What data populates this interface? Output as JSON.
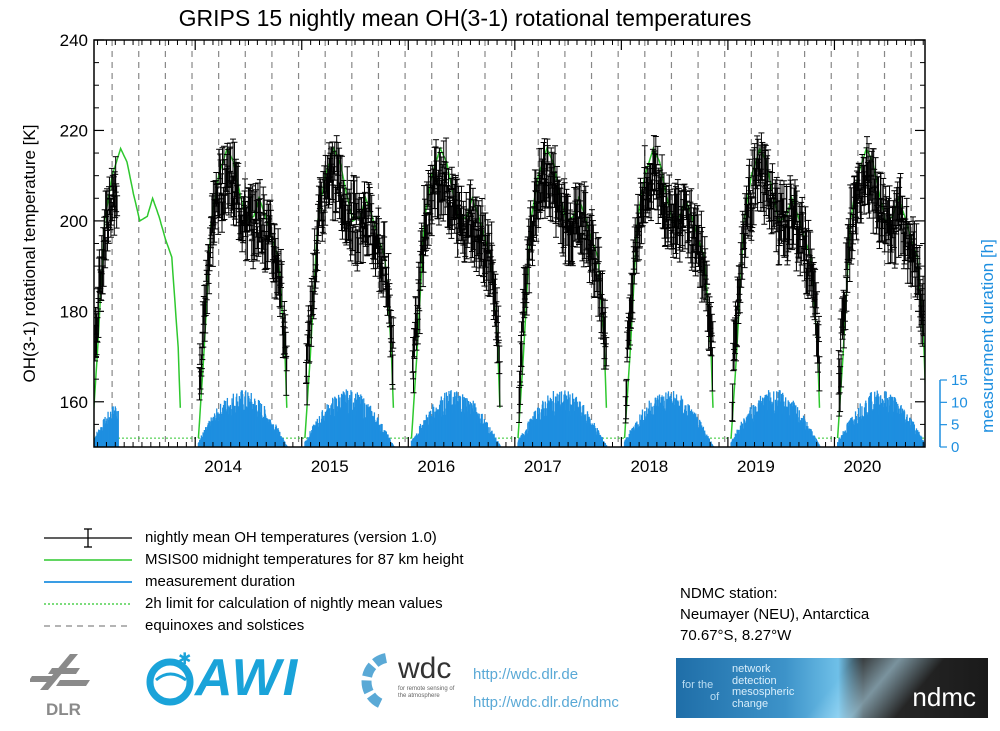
{
  "chart_data": {
    "type": "line",
    "title": "GRIPS 15 nightly mean OH(3-1) rotational temperatures",
    "ylabel": "OH(3-1) rotational temperature [K]",
    "y2label": "measurement duration [h]",
    "xlabel": "",
    "xlim": [
      2013.05,
      2020.85
    ],
    "ylim": [
      150,
      240
    ],
    "y2lim": [
      0,
      15
    ],
    "yticks": [
      "160",
      "180",
      "200",
      "220",
      "240"
    ],
    "y2ticks": [
      "0",
      "5",
      "10",
      "15"
    ],
    "xticks": [
      {
        "label": "2014",
        "x": 2014
      },
      {
        "label": "2015",
        "x": 2015
      },
      {
        "label": "2016",
        "x": 2016
      },
      {
        "label": "2017",
        "x": 2017
      },
      {
        "label": "2018",
        "x": 2018
      },
      {
        "label": "2019",
        "x": 2019
      },
      {
        "label": "2020",
        "x": 2020
      }
    ],
    "dashed_line_offsets": [
      0.22,
      0.47,
      0.72,
      0.97
    ],
    "measurement_seasons": [
      {
        "start": 2013.05,
        "end": 2013.28
      },
      {
        "start": 2014.03,
        "end": 2014.87
      },
      {
        "start": 2015.03,
        "end": 2015.87
      },
      {
        "start": 2016.03,
        "end": 2016.87
      },
      {
        "start": 2017.03,
        "end": 2017.87
      },
      {
        "start": 2018.03,
        "end": 2018.87
      },
      {
        "start": 2019.03,
        "end": 2019.87
      },
      {
        "start": 2020.03,
        "end": 2020.85
      }
    ],
    "seasonal_profile": {
      "x_offset": [
        0.03,
        0.08,
        0.15,
        0.22,
        0.3,
        0.36,
        0.42,
        0.48,
        0.55,
        0.6,
        0.66,
        0.72,
        0.78,
        0.84,
        0.87
      ],
      "msis_K": [
        152,
        170,
        200,
        210,
        216,
        213,
        206,
        200,
        201,
        205,
        201,
        196,
        192,
        172,
        152
      ],
      "oh_mean_K": [
        160,
        178,
        198,
        206,
        210,
        208,
        203,
        200,
        199,
        201,
        198,
        194,
        190,
        176,
        166
      ],
      "duration_peak_h": 13
    },
    "limit_line_h": 2,
    "series": [
      {
        "name": "nightly mean OH temperatures (version 1.0)",
        "color": "#000000"
      },
      {
        "name": "MSIS00 midnight temperatures for 87 km height",
        "color": "#2ec82e"
      },
      {
        "name": "measurement duration",
        "color": "#1e8fe0"
      },
      {
        "name": "2h limit for calculation of nightly mean values",
        "color": "#2ec82e"
      },
      {
        "name": "equinoxes and solstices",
        "color": "#888888"
      }
    ]
  },
  "station": {
    "heading": "NDMC station:",
    "name": "Neumayer (NEU), Antarctica",
    "coords": "70.67°S, 8.27°W"
  },
  "links": [
    "http://wdc.dlr.de",
    "http://wdc.dlr.de/ndmc"
  ],
  "logos": {
    "dlr": "DLR",
    "awi": "AWI",
    "wdc": "wdc",
    "wdc_sub": "for remote sensing of the atmosphere",
    "ndmc_for_the": "for the",
    "ndmc_of": "of",
    "ndmc_taglines": [
      "network",
      "detection",
      "mesospheric",
      "change"
    ],
    "ndmc_brand": "ndmc"
  },
  "colors": {
    "oh": "#000000",
    "msis": "#2ec82e",
    "duration": "#1e8fe0",
    "axis2": "#1e8fe0",
    "dashes": "#888888"
  }
}
